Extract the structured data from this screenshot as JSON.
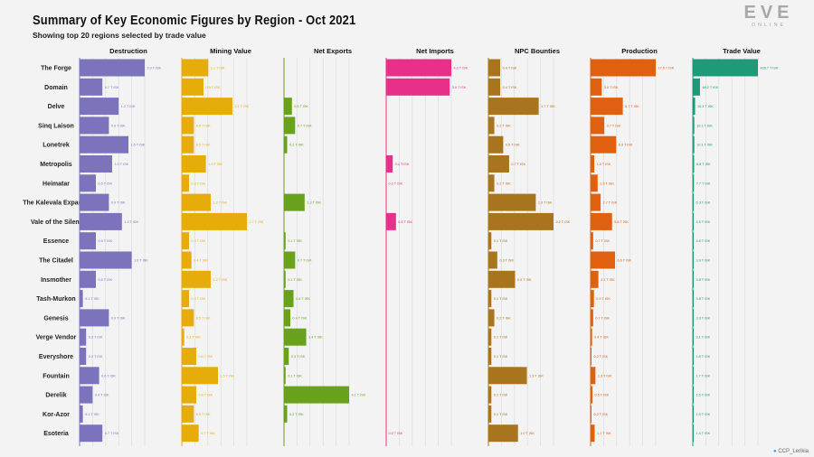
{
  "header": {
    "title": "Summary of Key Economic Figures by Region - Oct 2021",
    "subtitle": "Showing top 20 regions selected by trade value"
  },
  "logo": {
    "main": "EVE",
    "sub": "ONLINE"
  },
  "credit": {
    "handle": "CCP_Lerikia"
  },
  "chart_data": {
    "type": "bar",
    "title": "Summary of Key Economic Figures by Region - Oct 2021",
    "subtitle": "Showing top 20 regions selected by trade value",
    "unit": "T ISK",
    "orientation": "horizontal",
    "categories": [
      "The Forge",
      "Domain",
      "Delve",
      "Sinq Laison",
      "Lonetrek",
      "Metropolis",
      "Heimatar",
      "The Kalevala Expanse",
      "Vale of the Silent",
      "Essence",
      "The Citadel",
      "Insmother",
      "Tash-Murkon",
      "Genesis",
      "Verge Vendor",
      "Everyshore",
      "Fountain",
      "Derelik",
      "Kor-Azor",
      "Esoteria"
    ],
    "series": [
      {
        "name": "Destruction",
        "color": "#7b74bd",
        "max": 2.0,
        "values": [
          2.0,
          0.7,
          1.2,
          0.9,
          1.5,
          1.0,
          0.5,
          0.9,
          1.3,
          0.5,
          1.6,
          0.5,
          0.1,
          0.9,
          0.2,
          0.2,
          0.6,
          0.4,
          0.1,
          0.7
        ],
        "labels": [
          "2.0 T ISK",
          "0.7 T ISK",
          "1.2 T ISK",
          "0.9 T ISK",
          "1.5 T ISK",
          "1.0 T ISK",
          "0.5 T ISK",
          "0.9 T ISK",
          "1.3 T ISK",
          "0.5 T ISK",
          "1.6 T ISK",
          "0.5 T ISK",
          "0.1 T ISK",
          "0.9 T ISK",
          "0.2 T ISK",
          "0.2 T ISK",
          "0.6 T ISK",
          "0.4 T ISK",
          "0.1 T ISK",
          "0.7 T ISK"
        ]
      },
      {
        "name": "Mining Value",
        "color": "#e6ac0a",
        "max": 2.7,
        "values": [
          1.1,
          0.9,
          2.1,
          0.5,
          0.5,
          1.0,
          0.3,
          1.2,
          2.7,
          0.3,
          0.4,
          1.2,
          0.3,
          0.5,
          0.1,
          0.6,
          1.5,
          0.6,
          0.5,
          0.7
        ],
        "labels": [
          "1.1 T ISK",
          "0.9 T ISK",
          "2.1 T ISK",
          "0.5 T ISK",
          "0.5 T ISK",
          "1.0 T ISK",
          "0.3 T ISK",
          "1.2 T ISK",
          "2.7 T ISK",
          "0.3 T ISK",
          "0.4 T ISK",
          "1.2 T ISK",
          "0.3 T ISK",
          "0.5 T ISK",
          "0.1 T ISK",
          "0.6 T ISK",
          "1.5 T ISK",
          "0.6 T ISK",
          "0.5 T ISK",
          "0.7 T ISK"
        ]
      },
      {
        "name": "Net Exports",
        "color": "#6aa11c",
        "max": 4.1,
        "values": [
          0.0,
          0.0,
          0.5,
          0.7,
          0.2,
          0.0,
          0.0,
          1.3,
          0.0,
          0.1,
          0.7,
          0.1,
          0.6,
          0.4,
          1.4,
          0.3,
          0.1,
          4.1,
          0.2,
          0.0
        ],
        "labels": [
          "",
          "",
          "0.5 T ISK",
          "0.7 T ISK",
          "0.2 T ISK",
          "",
          "",
          "1.3 T ISK",
          "",
          "0.1 T ISK",
          "0.7 T ISK",
          "0.1 T ISK",
          "0.6 T ISK",
          "0.4 T ISK",
          "1.4 T ISK",
          "0.3 T ISK",
          "0.1 T ISK",
          "4.1 T ISK",
          "0.2 T ISK",
          ""
        ]
      },
      {
        "name": "Net Imports",
        "color": "#e8308a",
        "max": 4.0,
        "values": [
          4.0,
          3.9,
          0.0,
          0.0,
          0.0,
          0.4,
          0.0,
          0.0,
          0.6,
          0.0,
          0.0,
          0.0,
          0.0,
          0.0,
          0.0,
          0.0,
          0.0,
          0.0,
          0.0,
          0.0
        ],
        "labels": [
          "4.0 T ISK",
          "3.9 T ISK",
          "",
          "",
          "",
          "0.4 T ISK",
          "0.0 T ISK",
          "",
          "0.6 T ISK",
          "",
          "",
          "",
          "",
          "",
          "",
          "",
          "",
          "",
          "",
          "0.0 T ISK"
        ]
      },
      {
        "name": "NPC Bounties",
        "color": "#a8741e",
        "max": 2.2,
        "values": [
          0.4,
          0.4,
          1.7,
          0.2,
          0.5,
          0.7,
          0.2,
          1.6,
          2.2,
          0.1,
          0.3,
          0.9,
          0.1,
          0.2,
          0.1,
          0.1,
          1.3,
          0.1,
          0.1,
          1.0
        ],
        "labels": [
          "0.4 T ISK",
          "0.4 T ISK",
          "1.7 T ISK",
          "0.2 T ISK",
          "0.5 T ISK",
          "0.7 T ISK",
          "0.2 T ISK",
          "1.6 T ISK",
          "2.2 T ISK",
          "0.1 T ISK",
          "0.3 T ISK",
          "0.9 T ISK",
          "0.1 T ISK",
          "0.2 T ISK",
          "0.1 T ISK",
          "0.1 T ISK",
          "1.3 T ISK",
          "0.1 T ISK",
          "0.1 T ISK",
          "1.0 T ISK"
        ]
      },
      {
        "name": "Production",
        "color": "#e06010",
        "max": 17.6,
        "values": [
          17.6,
          3.0,
          8.7,
          3.7,
          6.9,
          1.0,
          1.9,
          2.7,
          5.8,
          0.7,
          6.6,
          2.1,
          0.9,
          0.7,
          0.4,
          0.2,
          1.3,
          0.5,
          0.2,
          1.1
        ],
        "labels": [
          "17.6 T ISK",
          "3.0 T ISK",
          "8.7 T ISK",
          "3.7 T ISK",
          "6.9 T ISK",
          "1.0 T ISK",
          "1.9 T ISK",
          "2.7 T ISK",
          "5.8 T ISK",
          "0.7 T ISK",
          "6.6 T ISK",
          "2.1 T ISK",
          "0.9 T ISK",
          "0.7 T ISK",
          "0.4 T ISK",
          "0.2 T ISK",
          "1.3 T ISK",
          "0.5 T ISK",
          "0.2 T ISK",
          "1.1 T ISK"
        ]
      },
      {
        "name": "Trade Value",
        "color": "#1e9a78",
        "max": 436.7,
        "values": [
          436.7,
          48.2,
          15.3,
          10.1,
          10.1,
          8.8,
          7.7,
          6.3,
          4.5,
          4.8,
          3.9,
          3.8,
          3.8,
          3.3,
          3.1,
          1.8,
          1.7,
          1.5,
          1.5,
          1.4
        ],
        "labels": [
          "436.7 T ISK",
          "48.2 T ISK",
          "15.3 T ISK",
          "10.1 T ISK",
          "10.1 T ISK",
          "8.8 T ISK",
          "7.7 T ISK",
          "6.3 T ISK",
          "4.5 T ISK",
          "4.8 T ISK",
          "3.9 T ISK",
          "3.8 T ISK",
          "3.8 T ISK",
          "3.3 T ISK",
          "3.1 T ISK",
          "1.8 T ISK",
          "1.7 T ISK",
          "1.5 T ISK",
          "1.5 T ISK",
          "1.4 T ISK"
        ]
      }
    ]
  }
}
